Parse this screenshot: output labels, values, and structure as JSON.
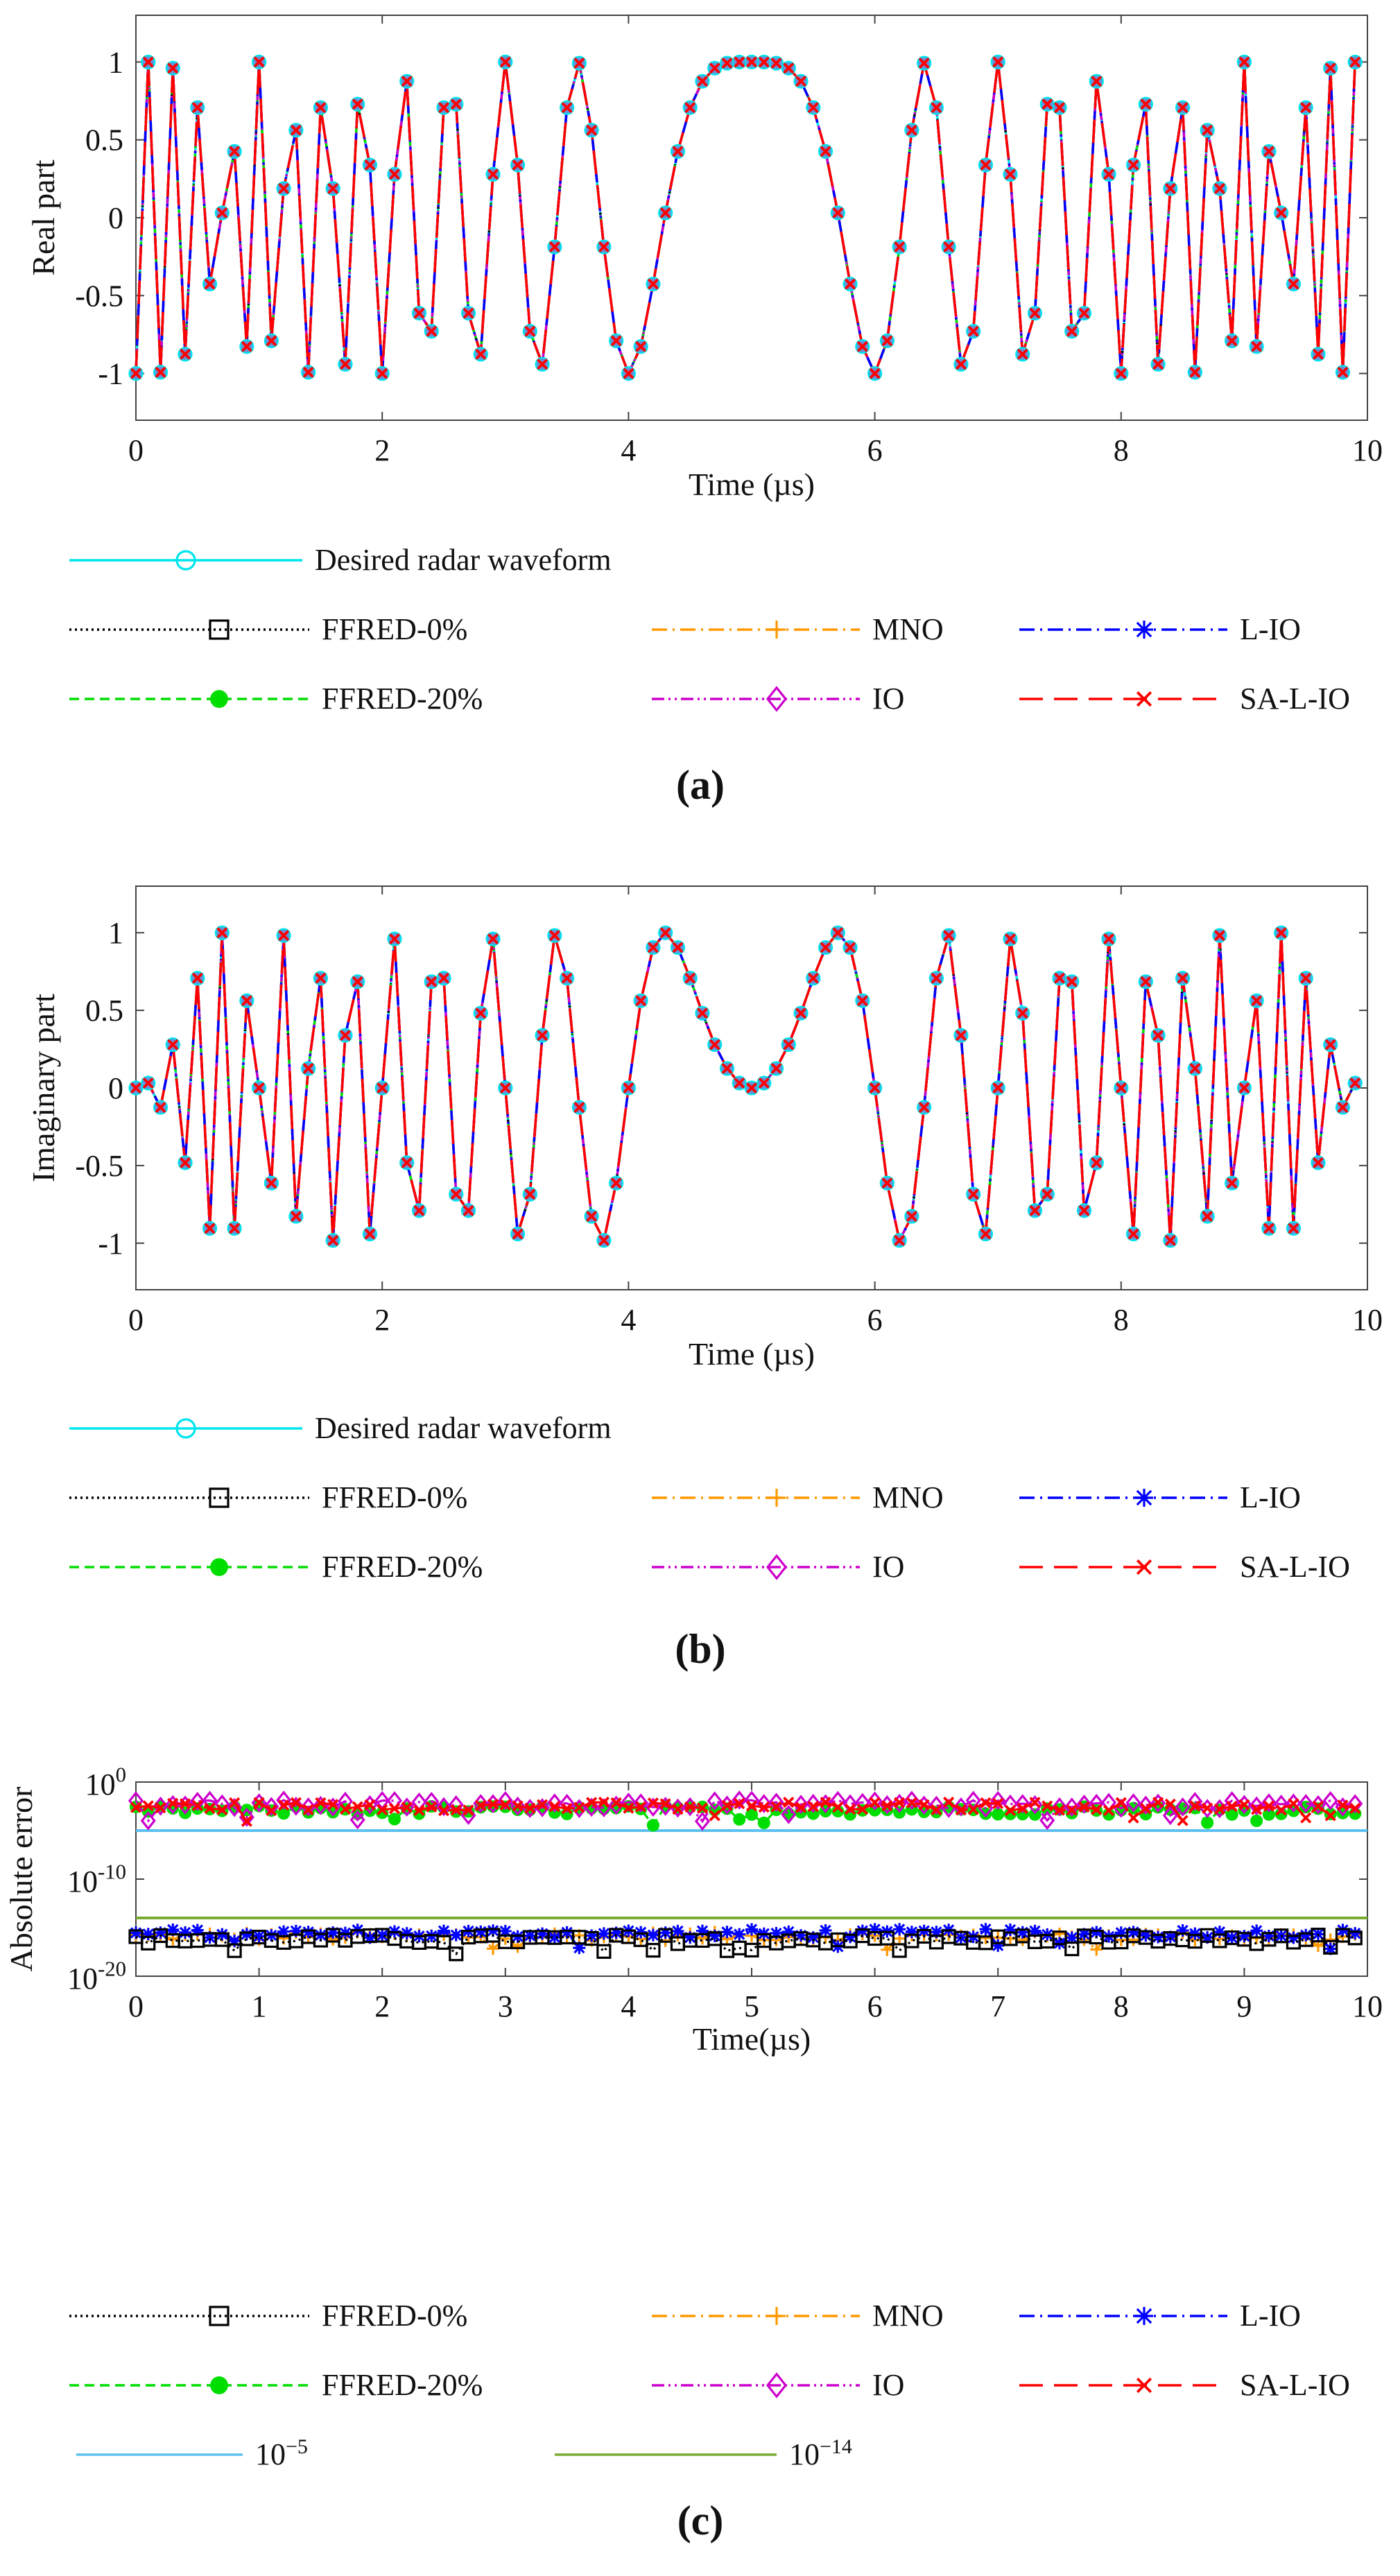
{
  "chart_data": [
    {
      "type": "line",
      "panel_label": "(a)",
      "ylabel": "Real part",
      "xlabel": "Time (µs)",
      "xlim": [
        0,
        10
      ],
      "ylim": [
        -1.3,
        1.3
      ],
      "xticks": [
        0,
        2,
        4,
        6,
        8,
        10
      ],
      "xtick_labels": [
        "0",
        "2",
        "4",
        "6",
        "8",
        "10"
      ],
      "yticks": [
        1,
        0.5,
        0,
        -0.5,
        -1
      ],
      "ytick_labels": [
        "1",
        "0.5",
        "0",
        "-0.5",
        "-1"
      ],
      "grid": false,
      "waveform": {
        "kind": "real",
        "description": "Re of exp(j*2*pi*(t-5)^2 / 2) sampled every 0.1 us"
      },
      "series": [
        {
          "name": "Desired radar waveform",
          "color": "#00e5ee",
          "style": "solid",
          "marker": "circle"
        },
        {
          "name": "FFRED-0%",
          "color": "#000000",
          "style": "dotted",
          "marker": "square"
        },
        {
          "name": "MNO",
          "color": "#ff9900",
          "style": "dashdot",
          "marker": "plus"
        },
        {
          "name": "L-IO",
          "color": "#0000ff",
          "style": "dashdot",
          "marker": "asterisk"
        },
        {
          "name": "FFRED-20%",
          "color": "#00dd00",
          "style": "dashed",
          "marker": "dot"
        },
        {
          "name": "IO",
          "color": "#cc00cc",
          "style": "dashdotdot",
          "marker": "diamond"
        },
        {
          "name": "SA-L-IO",
          "color": "#ff0000",
          "style": "longdash",
          "marker": "x"
        }
      ]
    },
    {
      "type": "line",
      "panel_label": "(b)",
      "ylabel": "Imaginary part",
      "xlabel": "Time (µs)",
      "xlim": [
        0,
        10
      ],
      "ylim": [
        -1.3,
        1.3
      ],
      "xticks": [
        0,
        2,
        4,
        6,
        8,
        10
      ],
      "xtick_labels": [
        "0",
        "2",
        "4",
        "6",
        "8",
        "10"
      ],
      "yticks": [
        1,
        0.5,
        0,
        -0.5,
        -1
      ],
      "ytick_labels": [
        "1",
        "0.5",
        "0",
        "-0.5",
        "-1"
      ],
      "grid": false,
      "waveform": {
        "kind": "imag",
        "description": "Im of exp(j*2*pi*(t-5)^2 / 2) sampled every 0.1 us"
      },
      "series": [
        {
          "name": "Desired radar waveform",
          "color": "#00e5ee",
          "style": "solid",
          "marker": "circle"
        },
        {
          "name": "FFRED-0%",
          "color": "#000000",
          "style": "dotted",
          "marker": "square"
        },
        {
          "name": "MNO",
          "color": "#ff9900",
          "style": "dashdot",
          "marker": "plus"
        },
        {
          "name": "L-IO",
          "color": "#0000ff",
          "style": "dashdot",
          "marker": "asterisk"
        },
        {
          "name": "FFRED-20%",
          "color": "#00dd00",
          "style": "dashed",
          "marker": "dot"
        },
        {
          "name": "IO",
          "color": "#cc00cc",
          "style": "dashdotdot",
          "marker": "diamond"
        },
        {
          "name": "SA-L-IO",
          "color": "#ff0000",
          "style": "longdash",
          "marker": "x"
        }
      ]
    },
    {
      "type": "line",
      "panel_label": "(c)",
      "ylabel": "Absolute error",
      "xlabel": "Time(µs)",
      "xlim": [
        0,
        10
      ],
      "yscale": "log",
      "ylim_log10": [
        -20,
        0
      ],
      "xticks": [
        0,
        1,
        2,
        3,
        4,
        5,
        6,
        7,
        8,
        9,
        10
      ],
      "xtick_labels": [
        "0",
        "1",
        "2",
        "3",
        "4",
        "5",
        "6",
        "7",
        "8",
        "9",
        "10"
      ],
      "yticks_log10": [
        0,
        -10,
        -20
      ],
      "ytick_labels": [
        {
          "base": "10",
          "exp": "0"
        },
        {
          "base": "10",
          "exp": "-10"
        },
        {
          "base": "10",
          "exp": "-20"
        }
      ],
      "grid": false,
      "series": [
        {
          "name": "FFRED-0%",
          "color": "#000000",
          "style": "dotted",
          "marker": "square",
          "typical_log10": -16.2
        },
        {
          "name": "MNO",
          "color": "#ff9900",
          "style": "dashdot",
          "marker": "plus",
          "typical_log10": -15.9
        },
        {
          "name": "L-IO",
          "color": "#0000ff",
          "style": "dashdot",
          "marker": "asterisk",
          "typical_log10": -15.6
        },
        {
          "name": "FFRED-20%",
          "color": "#00dd00",
          "style": "dashed",
          "marker": "dot",
          "typical_log10": -2.9
        },
        {
          "name": "IO",
          "color": "#cc00cc",
          "style": "dashdotdot",
          "marker": "diamond",
          "typical_log10": -2.3
        },
        {
          "name": "SA-L-IO",
          "color": "#ff0000",
          "style": "longdash",
          "marker": "x",
          "typical_log10": -2.5
        },
        {
          "name": "10",
          "name_exp": "−5",
          "color": "#5bc0f0",
          "style": "solid",
          "marker": "none",
          "constant_log10": -5
        },
        {
          "name": "10",
          "name_exp": "−14",
          "color": "#77ac30",
          "style": "solid",
          "marker": "none",
          "constant_log10": -14
        }
      ]
    }
  ]
}
